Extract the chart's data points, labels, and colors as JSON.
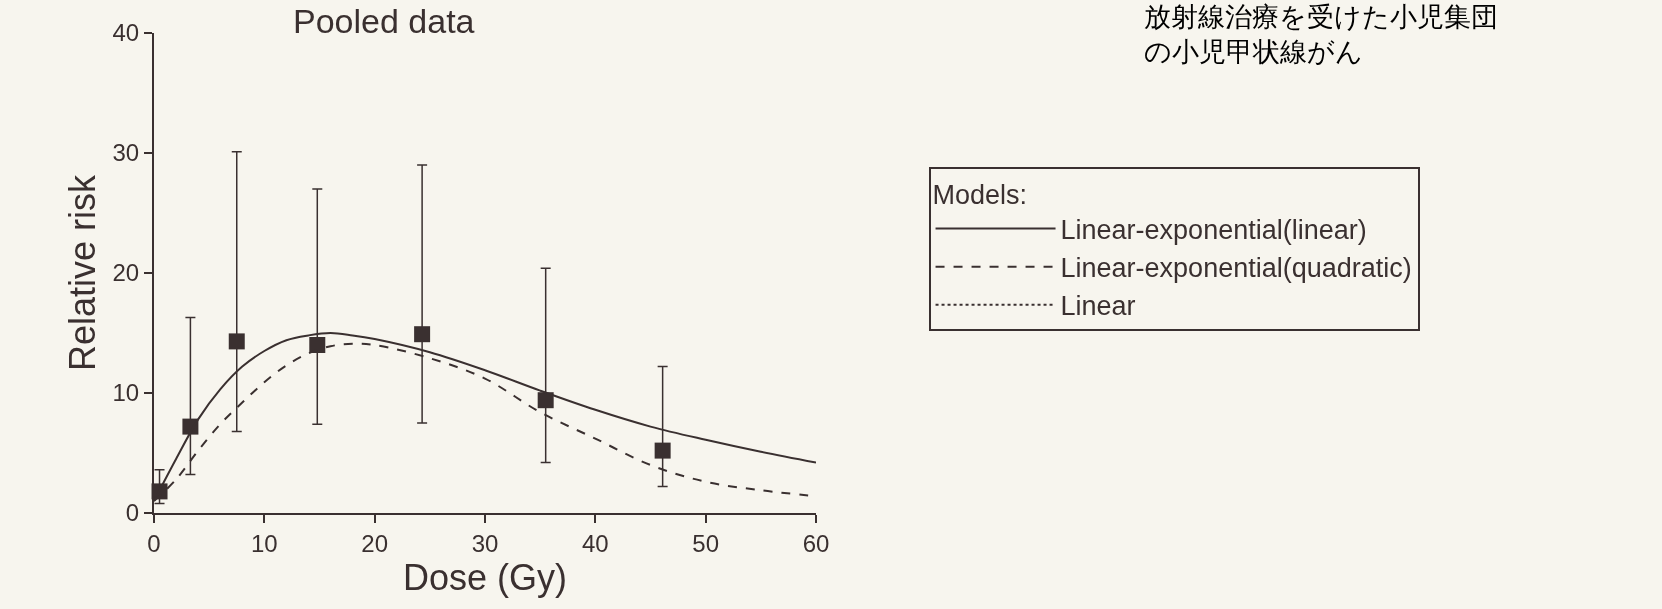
{
  "chart_data": {
    "type": "scatter",
    "title": "Pooled data",
    "xlabel": "Dose (Gy)",
    "ylabel": "Relative risk",
    "legend_title": "Models:",
    "annotations": [
      "放射線治療を受けた小児集団の小児甲状線がん"
    ],
    "x": [
      0.5,
      3.3,
      7.5,
      14.8,
      24.3,
      35.5,
      46.1
    ],
    "series": [
      {
        "color": "#3a3030",
        "marker": "square",
        "values": [
          1.8,
          7.2,
          14.3,
          14.0,
          14.9,
          9.4,
          5.2
        ],
        "errors": [
          [
            0.8,
            3.6
          ],
          [
            3.2,
            16.3
          ],
          [
            6.8,
            30.1
          ],
          [
            7.4,
            27.0
          ],
          [
            7.5,
            29.0
          ],
          [
            4.2,
            20.4
          ],
          [
            2.2,
            12.2
          ]
        ]
      },
      {
        "type": "line",
        "name": "Linear-exponential(linear)",
        "color": "#3a3030",
        "line_style": "solid",
        "marker": "none",
        "x": [
          0,
          2,
          4,
          6,
          8,
          10,
          12,
          14,
          16,
          18,
          20,
          25,
          30,
          35,
          40,
          45,
          50,
          55,
          60
        ],
        "values": [
          1,
          4.5,
          7.8,
          10.3,
          12.2,
          13.5,
          14.4,
          14.8,
          15.0,
          14.8,
          14.5,
          13.4,
          11.9,
          10.2,
          8.6,
          7.2,
          6.1,
          5.1,
          4.2
        ]
      },
      {
        "type": "line",
        "name": "Linear-exponential(quadratic)",
        "color": "#3a3030",
        "line_style": "dashed",
        "marker": "none",
        "x": [
          0,
          2,
          4,
          6,
          8,
          10,
          12,
          14,
          16,
          18,
          20,
          25,
          30,
          35,
          40,
          45,
          50,
          55,
          60
        ],
        "values": [
          1,
          2.8,
          5.2,
          7.4,
          9.2,
          10.9,
          12.3,
          13.3,
          13.9,
          14.1,
          14.0,
          12.9,
          11.2,
          8.4,
          6.2,
          4.0,
          2.6,
          1.9,
          1.4
        ]
      },
      {
        "type": "line",
        "name": "Linear",
        "color": "#3a3030",
        "line_style": "dotted",
        "marker": "none",
        "values": [
          null,
          null,
          null,
          null,
          null,
          null,
          null
        ]
      }
    ],
    "xlim": [
      0,
      60
    ],
    "xticks": [
      0,
      10,
      20,
      30,
      40,
      50,
      60
    ],
    "ylim": [
      0,
      40
    ],
    "yticks": [
      0,
      10,
      20,
      30,
      40
    ],
    "grid": false,
    "legend": "right"
  }
}
